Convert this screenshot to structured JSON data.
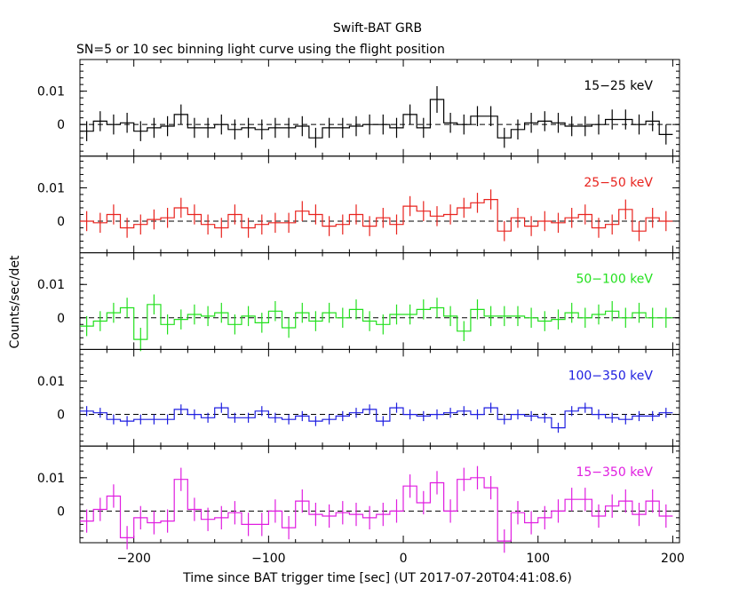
{
  "chart_data": {
    "type": "line",
    "title": "Swift-BAT GRB",
    "subtitle": "SN=5 or 10 sec binning light curve using the flight position",
    "xlabel": "Time since BAT trigger time [sec] (UT 2017-07-20T04:41:08.6)",
    "ylabel": "Counts/sec/det",
    "xlim": [
      -240,
      205
    ],
    "x_ticks": [
      -200,
      -100,
      0,
      100,
      200
    ],
    "x_tick_labels": [
      "−200",
      "−100",
      "0",
      "100",
      "200"
    ],
    "y_ticks": [
      0,
      0.01
    ],
    "y_tick_labels": [
      "0",
      "0.01"
    ],
    "bin_width": 10,
    "reference_line": 0,
    "panels": [
      {
        "name": "15−25 keV",
        "color": "#000000",
        "ylim": [
          -0.0095,
          0.0195
        ],
        "bin_start": [
          -240,
          -230,
          -220,
          -210,
          -200,
          -190,
          -180,
          -170,
          -160,
          -150,
          -140,
          -130,
          -120,
          -110,
          -100,
          -90,
          -80,
          -70,
          -60,
          -50,
          -40,
          -30,
          -20,
          -10,
          0,
          10,
          20,
          30,
          40,
          50,
          60,
          70,
          80,
          90,
          100,
          110,
          120,
          130,
          140,
          150,
          160,
          170,
          180,
          190
        ],
        "values": [
          -0.002,
          0.001,
          0.0,
          0.0005,
          -0.002,
          -0.001,
          -0.0005,
          0.003,
          -0.001,
          -0.001,
          0.0,
          -0.0015,
          -0.001,
          -0.0015,
          -0.001,
          -0.001,
          -0.0005,
          -0.004,
          -0.001,
          -0.001,
          -0.0005,
          0.0,
          0.0,
          -0.001,
          0.003,
          -0.001,
          0.0075,
          0.0005,
          0.0,
          0.0025,
          0.0025,
          -0.004,
          -0.0015,
          0.0005,
          0.001,
          0.0005,
          -0.0005,
          -0.0005,
          0.0,
          0.0015,
          0.0015,
          0.0,
          0.001,
          -0.003
        ],
        "errors": [
          0.003,
          0.003,
          0.003,
          0.003,
          0.003,
          0.003,
          0.003,
          0.003,
          0.003,
          0.003,
          0.003,
          0.003,
          0.003,
          0.003,
          0.003,
          0.003,
          0.003,
          0.003,
          0.003,
          0.003,
          0.003,
          0.003,
          0.003,
          0.003,
          0.003,
          0.003,
          0.004,
          0.003,
          0.003,
          0.003,
          0.003,
          0.003,
          0.003,
          0.003,
          0.003,
          0.003,
          0.003,
          0.003,
          0.003,
          0.003,
          0.003,
          0.003,
          0.003,
          0.003
        ]
      },
      {
        "name": "25−50 keV",
        "color": "#e8231e",
        "ylim": [
          -0.0095,
          0.0195
        ],
        "bin_start": [
          -240,
          -230,
          -220,
          -210,
          -200,
          -190,
          -180,
          -170,
          -160,
          -150,
          -140,
          -130,
          -120,
          -110,
          -100,
          -90,
          -80,
          -70,
          -60,
          -50,
          -40,
          -30,
          -20,
          -10,
          0,
          10,
          20,
          30,
          40,
          50,
          60,
          70,
          80,
          90,
          100,
          110,
          120,
          130,
          140,
          150,
          160,
          170,
          180,
          190
        ],
        "values": [
          0.0,
          -0.0005,
          0.002,
          -0.002,
          -0.001,
          0.0005,
          0.001,
          0.004,
          0.002,
          -0.001,
          -0.002,
          0.002,
          -0.002,
          -0.001,
          -0.0005,
          -0.0005,
          0.003,
          0.002,
          -0.0015,
          -0.001,
          0.002,
          -0.0015,
          0.001,
          -0.001,
          0.0045,
          0.003,
          0.0015,
          0.002,
          0.004,
          0.0055,
          0.0065,
          -0.003,
          0.001,
          -0.0015,
          0.0,
          -0.0005,
          0.001,
          0.002,
          -0.002,
          -0.001,
          0.0035,
          -0.003,
          0.001,
          0.0
        ],
        "errors": [
          0.003,
          0.003,
          0.003,
          0.003,
          0.003,
          0.003,
          0.003,
          0.003,
          0.003,
          0.003,
          0.003,
          0.003,
          0.003,
          0.003,
          0.003,
          0.003,
          0.003,
          0.003,
          0.003,
          0.003,
          0.003,
          0.003,
          0.003,
          0.003,
          0.003,
          0.003,
          0.003,
          0.003,
          0.003,
          0.003,
          0.003,
          0.003,
          0.003,
          0.003,
          0.003,
          0.003,
          0.003,
          0.003,
          0.003,
          0.003,
          0.003,
          0.003,
          0.003,
          0.003
        ]
      },
      {
        "name": "50−100 keV",
        "color": "#23e01e",
        "ylim": [
          -0.0095,
          0.0195
        ],
        "bin_start": [
          -240,
          -230,
          -220,
          -210,
          -200,
          -190,
          -180,
          -170,
          -160,
          -150,
          -140,
          -130,
          -120,
          -110,
          -100,
          -90,
          -80,
          -70,
          -60,
          -50,
          -40,
          -30,
          -20,
          -10,
          0,
          10,
          20,
          30,
          40,
          50,
          60,
          70,
          80,
          90,
          100,
          110,
          120,
          130,
          140,
          150,
          160,
          170,
          180,
          190
        ],
        "values": [
          -0.0025,
          -0.001,
          0.0015,
          0.003,
          -0.0065,
          0.004,
          -0.002,
          -0.0005,
          0.001,
          0.0005,
          0.0015,
          -0.002,
          0.0005,
          -0.0015,
          0.002,
          -0.003,
          0.0015,
          -0.001,
          0.0015,
          0.0,
          0.0025,
          -0.001,
          -0.002,
          0.001,
          0.001,
          0.0025,
          0.003,
          0.0005,
          -0.004,
          0.0025,
          0.0005,
          0.0005,
          0.0005,
          0.0,
          -0.001,
          -0.0005,
          0.0015,
          0.0,
          0.001,
          0.002,
          0.0,
          0.0015,
          0.0,
          0.0
        ],
        "errors": [
          0.003,
          0.003,
          0.003,
          0.003,
          0.0035,
          0.003,
          0.003,
          0.003,
          0.003,
          0.003,
          0.003,
          0.003,
          0.003,
          0.003,
          0.003,
          0.003,
          0.003,
          0.003,
          0.003,
          0.003,
          0.003,
          0.003,
          0.003,
          0.003,
          0.003,
          0.003,
          0.003,
          0.003,
          0.003,
          0.003,
          0.003,
          0.003,
          0.003,
          0.003,
          0.003,
          0.003,
          0.003,
          0.003,
          0.003,
          0.003,
          0.003,
          0.003,
          0.003,
          0.003
        ]
      },
      {
        "name": "100−350 keV",
        "color": "#1e1ee0",
        "ylim": [
          -0.0095,
          0.0195
        ],
        "bin_start": [
          -240,
          -230,
          -220,
          -210,
          -200,
          -190,
          -180,
          -170,
          -160,
          -150,
          -140,
          -130,
          -120,
          -110,
          -100,
          -90,
          -80,
          -70,
          -60,
          -50,
          -40,
          -30,
          -20,
          -10,
          0,
          10,
          20,
          30,
          40,
          50,
          60,
          70,
          80,
          90,
          100,
          110,
          120,
          130,
          140,
          150,
          160,
          170,
          180,
          190
        ],
        "values": [
          0.001,
          0.0005,
          -0.0015,
          -0.002,
          -0.0015,
          -0.0015,
          -0.0015,
          0.0015,
          0.0,
          -0.001,
          0.002,
          -0.001,
          -0.001,
          0.001,
          -0.001,
          -0.0015,
          -0.0005,
          -0.002,
          -0.0015,
          -0.0005,
          0.0005,
          0.0015,
          -0.002,
          0.002,
          0.0,
          -0.0005,
          0.0,
          0.0005,
          0.001,
          0.0,
          0.002,
          -0.0015,
          0.0,
          -0.0005,
          -0.001,
          -0.004,
          0.001,
          0.002,
          0.0,
          -0.001,
          -0.0015,
          -0.0005,
          -0.0005,
          0.0005
        ],
        "errors": [
          0.0015,
          0.0015,
          0.0015,
          0.0015,
          0.0015,
          0.0015,
          0.0015,
          0.0015,
          0.0015,
          0.0015,
          0.0015,
          0.0015,
          0.0015,
          0.0015,
          0.0015,
          0.0015,
          0.0015,
          0.0015,
          0.0015,
          0.0015,
          0.0015,
          0.0015,
          0.0015,
          0.0015,
          0.0015,
          0.0015,
          0.0015,
          0.0015,
          0.0015,
          0.0015,
          0.0015,
          0.0015,
          0.0015,
          0.0015,
          0.0015,
          0.0015,
          0.0015,
          0.0015,
          0.0015,
          0.0015,
          0.0015,
          0.0015,
          0.0015,
          0.0015
        ]
      },
      {
        "name": "15−350 keV",
        "color": "#e01ee0",
        "ylim": [
          -0.0095,
          0.0195
        ],
        "bin_start": [
          -240,
          -230,
          -220,
          -210,
          -200,
          -190,
          -180,
          -170,
          -160,
          -150,
          -140,
          -130,
          -120,
          -110,
          -100,
          -90,
          -80,
          -70,
          -60,
          -50,
          -40,
          -30,
          -20,
          -10,
          0,
          10,
          20,
          30,
          40,
          50,
          60,
          70,
          80,
          90,
          100,
          110,
          120,
          130,
          140,
          150,
          160,
          170,
          180,
          190
        ],
        "values": [
          -0.003,
          0.0005,
          0.0045,
          -0.008,
          -0.002,
          -0.0035,
          -0.003,
          0.0095,
          0.0005,
          -0.0025,
          -0.002,
          -0.0005,
          -0.004,
          -0.004,
          0.0,
          -0.005,
          0.003,
          -0.001,
          -0.0015,
          -0.0005,
          -0.001,
          -0.002,
          -0.001,
          0.0,
          0.0075,
          0.0025,
          0.0085,
          0.0,
          0.0095,
          0.01,
          0.007,
          -0.009,
          -0.0005,
          -0.0035,
          -0.002,
          0.0,
          0.0035,
          0.0035,
          -0.0015,
          0.0015,
          0.003,
          -0.001,
          0.003,
          -0.0015
        ],
        "errors": [
          0.0035,
          0.0035,
          0.0035,
          0.0035,
          0.0035,
          0.0035,
          0.0035,
          0.0035,
          0.0035,
          0.0035,
          0.0035,
          0.0035,
          0.0035,
          0.0035,
          0.0035,
          0.0035,
          0.0035,
          0.0035,
          0.0035,
          0.0035,
          0.0035,
          0.0035,
          0.0035,
          0.0035,
          0.0035,
          0.0035,
          0.0035,
          0.0035,
          0.0035,
          0.0035,
          0.0035,
          0.0035,
          0.0035,
          0.0035,
          0.0035,
          0.0035,
          0.0035,
          0.0035,
          0.0035,
          0.0035,
          0.0035,
          0.0035,
          0.0035,
          0.0035
        ]
      }
    ]
  }
}
